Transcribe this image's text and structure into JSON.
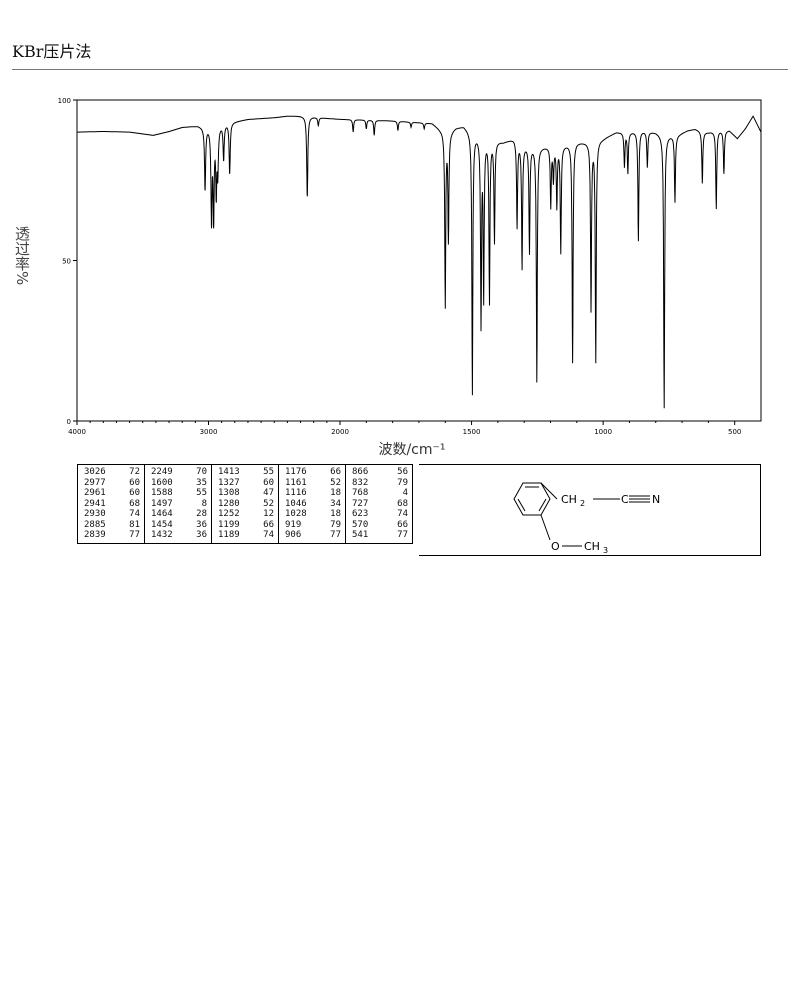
{
  "header": {
    "title": "KBr压片法"
  },
  "chart_data": {
    "type": "line",
    "xlabel": "波数/cm⁻¹",
    "ylabel": "透过率%",
    "xlim": [
      4000,
      400
    ],
    "ylim": [
      0,
      100
    ],
    "x_ticks": [
      4000,
      3000,
      2000,
      1500,
      1000,
      500
    ],
    "y_ticks": [
      0,
      50,
      100
    ],
    "x_tick_labels": [
      "4000",
      "3000",
      "2000",
      "1500",
      "1000",
      "500"
    ],
    "y_tick_labels": [
      "0",
      "50",
      "100"
    ],
    "x_scale": "IR: 4000–2000 compressed, 2000–400 expanded",
    "baseline_points": [
      [
        4000,
        90
      ],
      [
        3800,
        90.2
      ],
      [
        3600,
        90
      ],
      [
        3420,
        89
      ],
      [
        3300,
        90.2
      ],
      [
        3200,
        91.5
      ],
      [
        3080,
        92
      ],
      [
        3040,
        91.6
      ],
      [
        2700,
        94
      ],
      [
        2500,
        94.5
      ],
      [
        2400,
        95
      ],
      [
        2300,
        95
      ],
      [
        2200,
        94.7
      ],
      [
        2100,
        94.3
      ],
      [
        2000,
        94
      ],
      [
        1900,
        93.8
      ],
      [
        1800,
        93.5
      ],
      [
        1700,
        93
      ],
      [
        1650,
        92.8
      ],
      [
        1620,
        91
      ],
      [
        1585,
        90
      ],
      [
        1560,
        91.5
      ],
      [
        1530,
        92
      ],
      [
        1500,
        90
      ],
      [
        1440,
        88
      ],
      [
        1380,
        87
      ],
      [
        1340,
        88
      ],
      [
        1300,
        86
      ],
      [
        1230,
        85.5
      ],
      [
        1150,
        86
      ],
      [
        1100,
        87
      ],
      [
        1060,
        87
      ],
      [
        1000,
        88
      ],
      [
        950,
        90
      ],
      [
        900,
        90
      ],
      [
        860,
        90.5
      ],
      [
        800,
        90
      ],
      [
        770,
        89
      ],
      [
        720,
        89
      ],
      [
        680,
        90.5
      ],
      [
        650,
        91
      ],
      [
        620,
        90
      ],
      [
        600,
        90
      ],
      [
        560,
        90.5
      ],
      [
        520,
        90.5
      ],
      [
        490,
        88
      ],
      [
        460,
        91
      ],
      [
        430,
        95
      ],
      [
        400,
        90
      ]
    ],
    "peaks": [
      {
        "x": 3026,
        "y": 72
      },
      {
        "x": 2977,
        "y": 60
      },
      {
        "x": 2961,
        "y": 60
      },
      {
        "x": 2941,
        "y": 68
      },
      {
        "x": 2930,
        "y": 74
      },
      {
        "x": 2885,
        "y": 81
      },
      {
        "x": 2839,
        "y": 77
      },
      {
        "x": 2249,
        "y": 70
      },
      {
        "x": 1600,
        "y": 35
      },
      {
        "x": 1588,
        "y": 55
      },
      {
        "x": 1497,
        "y": 8
      },
      {
        "x": 1464,
        "y": 28
      },
      {
        "x": 1454,
        "y": 36
      },
      {
        "x": 1432,
        "y": 36
      },
      {
        "x": 1413,
        "y": 55
      },
      {
        "x": 1327,
        "y": 60
      },
      {
        "x": 1308,
        "y": 47
      },
      {
        "x": 1280,
        "y": 52
      },
      {
        "x": 1252,
        "y": 12
      },
      {
        "x": 1199,
        "y": 66
      },
      {
        "x": 1189,
        "y": 74
      },
      {
        "x": 1176,
        "y": 66
      },
      {
        "x": 1161,
        "y": 52
      },
      {
        "x": 1116,
        "y": 18
      },
      {
        "x": 1046,
        "y": 34
      },
      {
        "x": 1028,
        "y": 18
      },
      {
        "x": 919,
        "y": 79
      },
      {
        "x": 906,
        "y": 77
      },
      {
        "x": 866,
        "y": 56
      },
      {
        "x": 832,
        "y": 79
      },
      {
        "x": 768,
        "y": 4
      },
      {
        "x": 727,
        "y": 68
      },
      {
        "x": 623,
        "y": 74
      },
      {
        "x": 570,
        "y": 66
      },
      {
        "x": 541,
        "y": 77
      }
    ],
    "minor_dips": [
      [
        2165,
        92
      ],
      [
        1950,
        90
      ],
      [
        1900,
        91
      ],
      [
        1870,
        89
      ],
      [
        1780,
        90.5
      ],
      [
        1730,
        91.5
      ],
      [
        1680,
        91
      ]
    ]
  },
  "peak_table": [
    [
      [
        "3026",
        "72"
      ],
      [
        "2977",
        "60"
      ],
      [
        "2961",
        "60"
      ],
      [
        "2941",
        "68"
      ],
      [
        "2930",
        "74"
      ],
      [
        "2885",
        "81"
      ],
      [
        "2839",
        "77"
      ]
    ],
    [
      [
        "2249",
        "70"
      ],
      [
        "1600",
        "35"
      ],
      [
        "1588",
        "55"
      ],
      [
        "1497",
        "8"
      ],
      [
        "1464",
        "28"
      ],
      [
        "1454",
        "36"
      ],
      [
        "1432",
        "36"
      ]
    ],
    [
      [
        "1413",
        "55"
      ],
      [
        "1327",
        "60"
      ],
      [
        "1308",
        "47"
      ],
      [
        "1280",
        "52"
      ],
      [
        "1252",
        "12"
      ],
      [
        "1199",
        "66"
      ],
      [
        "1189",
        "74"
      ]
    ],
    [
      [
        "1176",
        "66"
      ],
      [
        "1161",
        "52"
      ],
      [
        "1116",
        "18"
      ],
      [
        "1046",
        "34"
      ],
      [
        "1028",
        "18"
      ],
      [
        "919",
        "79"
      ],
      [
        "906",
        "77"
      ]
    ],
    [
      [
        "866",
        "56"
      ],
      [
        "832",
        "79"
      ],
      [
        "768",
        "4"
      ],
      [
        "727",
        "68"
      ],
      [
        "623",
        "74"
      ],
      [
        "570",
        "66"
      ],
      [
        "541",
        "77"
      ]
    ]
  ],
  "structure": {
    "chain_ch": "CH",
    "chain_sub2": "2",
    "nitrile_c": "C",
    "nitrile_n": "N",
    "oxygen": "O",
    "methyl_ch": "CH",
    "methyl_sub3": "3"
  }
}
